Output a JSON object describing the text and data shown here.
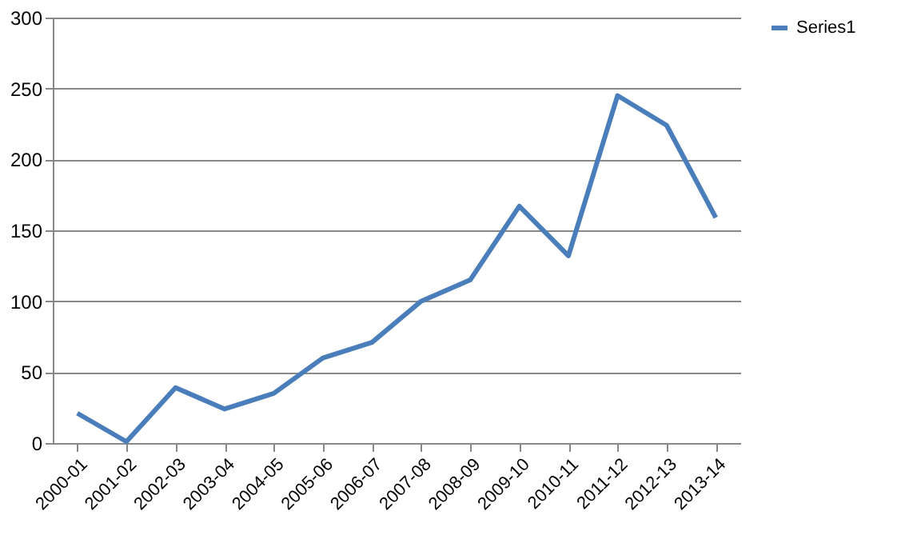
{
  "chart_data": {
    "type": "line",
    "categories": [
      "2000-01",
      "2001-02",
      "2002-03",
      "2003-04",
      "2004-05",
      "2005-06",
      "2006-07",
      "2007-08",
      "2008-09",
      "2009-10",
      "2010-11",
      "2011-12",
      "2012-13",
      "2013-14"
    ],
    "series": [
      {
        "name": "Series1",
        "color": "#4a7ebb",
        "values": [
          21,
          1,
          39,
          24,
          35,
          60,
          71,
          100,
          115,
          167,
          132,
          245,
          224,
          159
        ]
      }
    ],
    "ylim": [
      0,
      300
    ],
    "yticks": [
      0,
      50,
      100,
      150,
      200,
      250,
      300
    ],
    "grid": "y",
    "legend": "right",
    "marker": "none",
    "line_style": "solid"
  }
}
